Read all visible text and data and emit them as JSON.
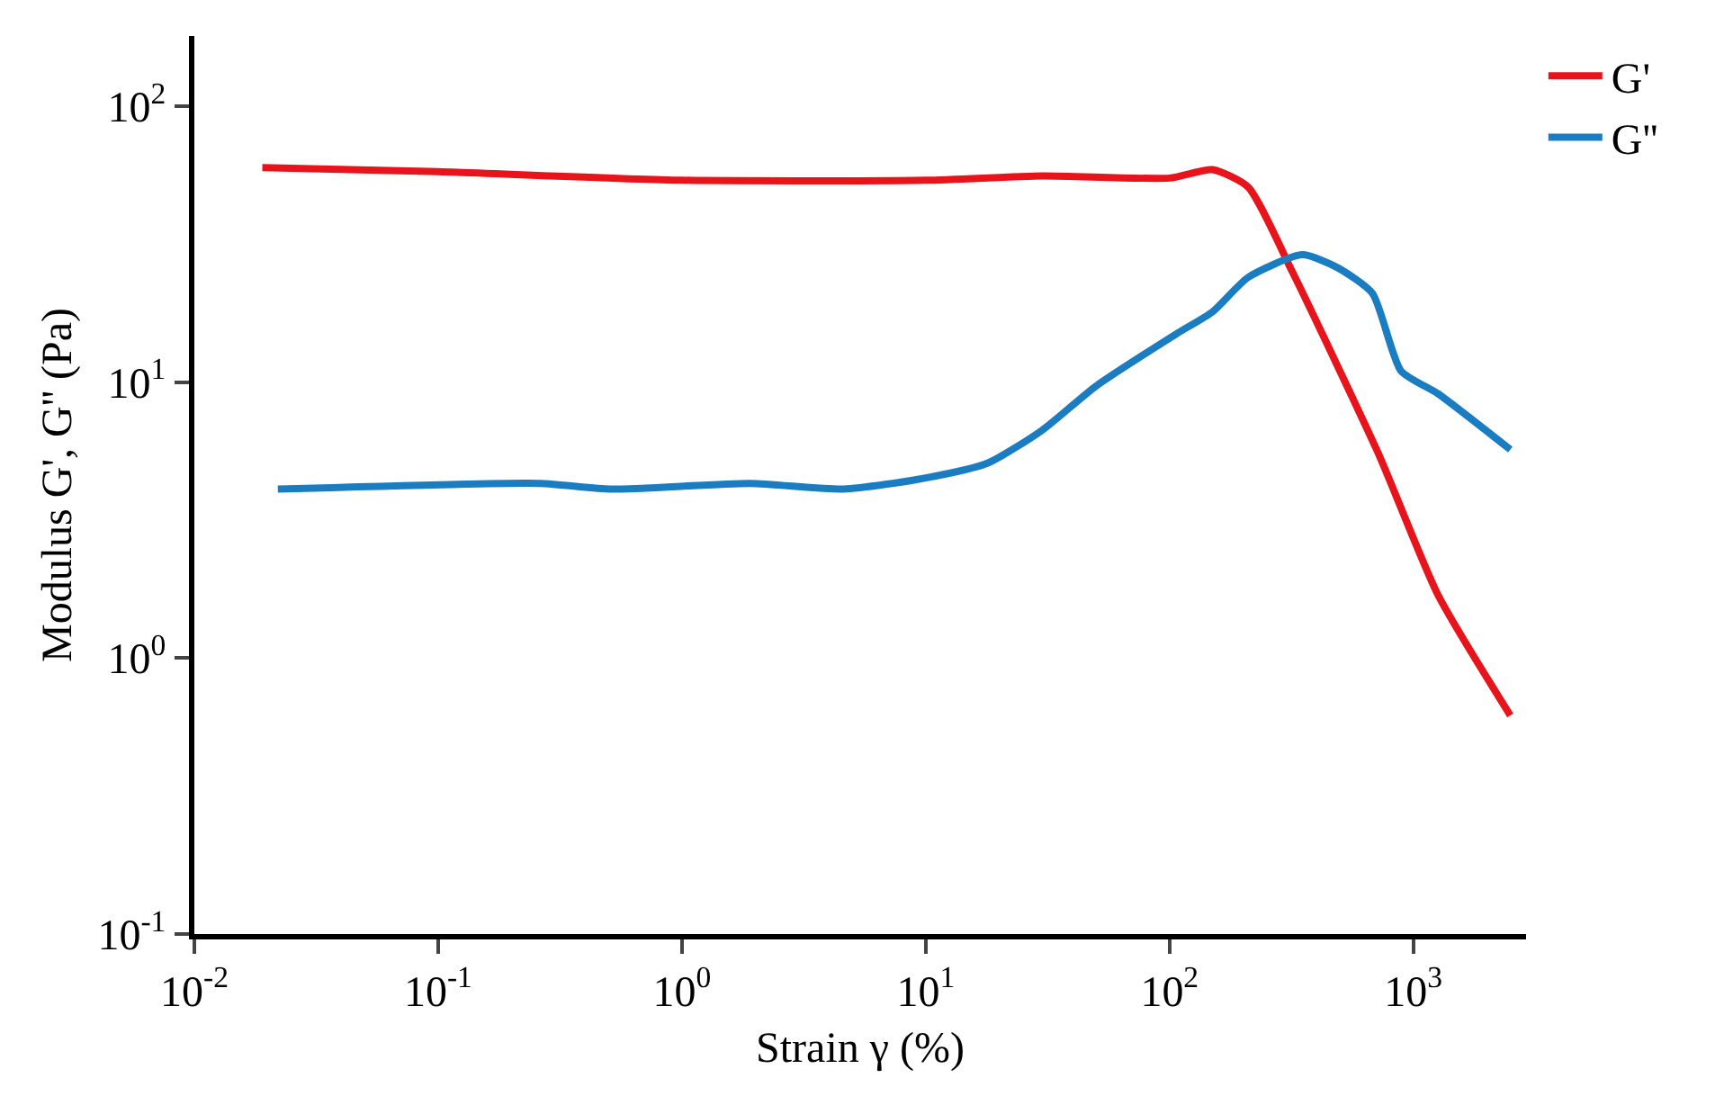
{
  "chart_data": {
    "type": "line",
    "xlabel": "Strain γ (%)",
    "ylabel": "Modulus G', G'' (Pa)",
    "log": "xy",
    "xlim": [
      0.01,
      2900
    ],
    "ylim": [
      0.1,
      180
    ],
    "xticks": [
      {
        "value": 0.01,
        "label": "10$^{-2}$"
      },
      {
        "value": 0.1,
        "label": "10$^{-1}$"
      },
      {
        "value": 1,
        "label": "10$^{0}$"
      },
      {
        "value": 10,
        "label": "10$^{1}$"
      },
      {
        "value": 100,
        "label": "10$^{2}$"
      },
      {
        "value": 1000,
        "label": "10$^{3}$"
      }
    ],
    "yticks": [
      {
        "value": 0.1,
        "label": "10$^{-1}$"
      },
      {
        "value": 1,
        "label": "10$^{0}$"
      },
      {
        "value": 10,
        "label": "10$^{1}$"
      },
      {
        "value": 100,
        "label": "10$^{2}$"
      }
    ],
    "grid": false,
    "legend": "top right",
    "marker": "none",
    "line_style": "solid",
    "series": [
      {
        "name": "G'",
        "color": "#e8141b",
        "x": [
          0.019,
          0.1,
          1,
          10,
          30,
          100,
          150,
          210,
          320,
          720,
          1260,
          2500
        ],
        "values": [
          60,
          58,
          54,
          54,
          56,
          55,
          59,
          51,
          25,
          5.5,
          1.7,
          0.62
        ]
      },
      {
        "name": "G''",
        "color": "#1a7cc1",
        "x": [
          0.022,
          0.26,
          0.51,
          1.9,
          4.6,
          10,
          18,
          30,
          50,
          107,
          150,
          210,
          350,
          490,
          680,
          890,
          1260,
          2500
        ],
        "values": [
          4.1,
          4.3,
          4.1,
          4.3,
          4.1,
          4.5,
          5.1,
          6.7,
          9.7,
          15,
          18,
          24,
          29,
          26,
          21,
          11,
          9.1,
          5.7
        ]
      }
    ]
  }
}
